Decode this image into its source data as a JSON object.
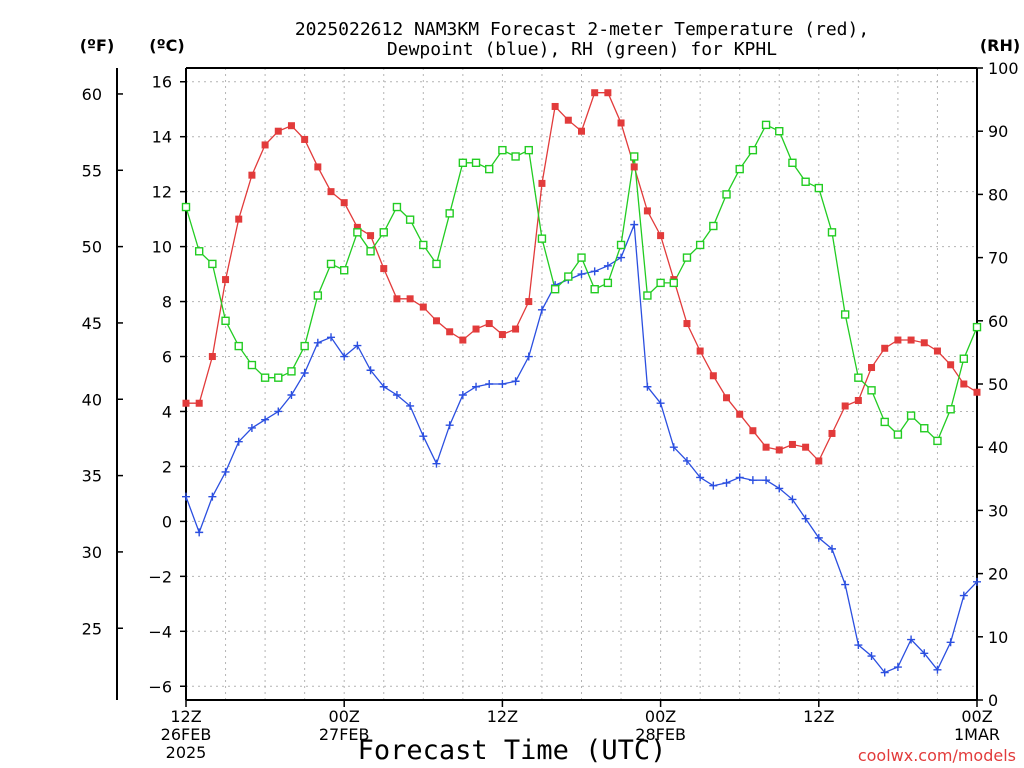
{
  "chart_data": {
    "type": "line",
    "title_line1": "2025022612 NAM3KM Forecast 2-meter Temperature (red),",
    "title_line2": "Dewpoint (blue), RH (green) for KPHL",
    "xlabel": "Forecast Time (UTC)",
    "credit": "coolwx.com/models",
    "unit_labels": {
      "left_f": "(ºF)",
      "left_c": "(ºC)",
      "right_rh": "(RH)"
    },
    "axes": {
      "celsius": {
        "ylim": [
          -6.5,
          16.5
        ],
        "ticks": [
          -6,
          -4,
          -2,
          0,
          2,
          4,
          6,
          8,
          10,
          12,
          14,
          16
        ]
      },
      "fahrenheit": {
        "ticks": [
          25,
          30,
          35,
          40,
          45,
          50,
          55,
          60
        ]
      },
      "rh": {
        "ylim": [
          0,
          100
        ],
        "ticks": [
          0,
          10,
          20,
          30,
          40,
          50,
          60,
          70,
          80,
          90,
          100
        ]
      },
      "x": {
        "range_hours": [
          0,
          60
        ],
        "ticks": [
          {
            "hour": 0,
            "lines": [
              "12Z",
              "26FEB",
              "2025"
            ]
          },
          {
            "hour": 12,
            "lines": [
              "00Z",
              "27FEB"
            ]
          },
          {
            "hour": 24,
            "lines": [
              "12Z"
            ]
          },
          {
            "hour": 36,
            "lines": [
              "00Z",
              "28FEB"
            ]
          },
          {
            "hour": 48,
            "lines": [
              "12Z"
            ]
          },
          {
            "hour": 60,
            "lines": [
              "00Z",
              "1MAR"
            ]
          }
        ]
      }
    },
    "grid": true,
    "series": [
      {
        "name": "Temperature",
        "color": "#e23b3b",
        "marker": "filled-square",
        "axis": "celsius",
        "x": [
          0,
          1,
          2,
          3,
          4,
          5,
          6,
          7,
          8,
          9,
          10,
          11,
          12,
          13,
          14,
          15,
          16,
          17,
          18,
          19,
          20,
          21,
          22,
          23,
          24,
          25,
          26,
          27,
          28,
          29,
          30,
          31,
          32,
          33,
          34,
          35,
          36,
          37,
          38,
          39,
          40,
          41,
          42,
          43,
          44,
          45,
          46,
          47,
          48,
          49,
          50,
          51,
          52,
          53,
          54,
          55,
          56,
          57,
          58,
          59,
          60
        ],
        "values": [
          4.3,
          4.3,
          6.0,
          8.8,
          11.0,
          12.6,
          13.7,
          14.2,
          14.4,
          13.9,
          12.9,
          12.0,
          11.6,
          10.7,
          10.4,
          9.2,
          8.1,
          8.1,
          7.8,
          7.3,
          6.9,
          6.6,
          7.0,
          7.2,
          6.8,
          7.0,
          8.0,
          12.3,
          15.1,
          14.6,
          14.2,
          15.6,
          15.6,
          14.5,
          12.9,
          11.3,
          10.4,
          8.8,
          7.2,
          6.2,
          5.3,
          4.5,
          3.9,
          3.3,
          2.7,
          2.6,
          2.8,
          2.7,
          2.2,
          3.2,
          4.2,
          4.4,
          5.6,
          6.3,
          6.6,
          6.6,
          6.5,
          6.2,
          5.7,
          5.0,
          4.7
        ]
      },
      {
        "name": "Dewpoint",
        "color": "#2b4fe0",
        "marker": "plus",
        "axis": "celsius",
        "x": [
          0,
          1,
          2,
          3,
          4,
          5,
          6,
          7,
          8,
          9,
          10,
          11,
          12,
          13,
          14,
          15,
          16,
          17,
          18,
          19,
          20,
          21,
          22,
          23,
          24,
          25,
          26,
          27,
          28,
          29,
          30,
          31,
          32,
          33,
          34,
          35,
          36,
          37,
          38,
          39,
          40,
          41,
          42,
          43,
          44,
          45,
          46,
          47,
          48,
          49,
          50,
          51,
          52,
          53,
          54,
          55,
          56,
          57,
          58,
          59,
          60
        ],
        "values": [
          0.9,
          -0.4,
          0.9,
          1.8,
          2.9,
          3.4,
          3.7,
          4.0,
          4.6,
          5.4,
          6.5,
          6.7,
          6.0,
          6.4,
          5.5,
          4.9,
          4.6,
          4.2,
          3.1,
          2.1,
          3.5,
          4.6,
          4.9,
          5.0,
          5.0,
          5.1,
          6.0,
          7.7,
          8.6,
          8.8,
          9.0,
          9.1,
          9.3,
          9.6,
          10.8,
          4.9,
          4.3,
          2.7,
          2.2,
          1.6,
          1.3,
          1.4,
          1.6,
          1.5,
          1.5,
          1.2,
          0.8,
          0.1,
          -0.6,
          -1.0,
          -2.3,
          -4.5,
          -4.9,
          -5.5,
          -5.3,
          -4.3,
          -4.8,
          -5.4,
          -4.4,
          -2.7,
          -2.2
        ]
      },
      {
        "name": "RH",
        "color": "#22cc22",
        "marker": "open-square",
        "axis": "rh",
        "x": [
          0,
          1,
          2,
          3,
          4,
          5,
          6,
          7,
          8,
          9,
          10,
          11,
          12,
          13,
          14,
          15,
          16,
          17,
          18,
          19,
          20,
          21,
          22,
          23,
          24,
          25,
          26,
          27,
          28,
          29,
          30,
          31,
          32,
          33,
          34,
          35,
          36,
          37,
          38,
          39,
          40,
          41,
          42,
          43,
          44,
          45,
          46,
          47,
          48,
          49,
          50,
          51,
          52,
          53,
          54,
          55,
          56,
          57,
          58,
          59,
          60
        ],
        "values": [
          78,
          71,
          69,
          60,
          56,
          53,
          51,
          51,
          52,
          56,
          64,
          69,
          68,
          74,
          71,
          74,
          78,
          76,
          72,
          69,
          77,
          85,
          85,
          84,
          87,
          86,
          87,
          73,
          65,
          67,
          70,
          65,
          66,
          72,
          86,
          64,
          66,
          66,
          70,
          72,
          75,
          80,
          84,
          87,
          91,
          90,
          85,
          82,
          81,
          74,
          61,
          51,
          49,
          44,
          42,
          45,
          43,
          41,
          46,
          54,
          59
        ]
      }
    ]
  }
}
